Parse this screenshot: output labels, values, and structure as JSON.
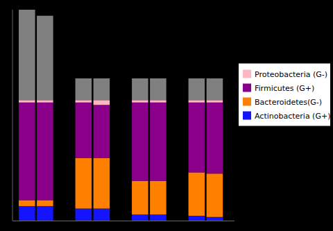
{
  "chart_data": {
    "type": "bar",
    "stacked": true,
    "legend": "right",
    "tick_labels": false,
    "categories": [
      null,
      null,
      null,
      null,
      null,
      null,
      null,
      null
    ],
    "ylim": [
      0,
      175
    ],
    "series": [
      {
        "name": "Actinobacteria (G+)",
        "color": "#1414FF",
        "values": [
          12,
          12,
          10,
          10,
          5,
          5,
          4,
          3
        ]
      },
      {
        "name": "Bacteroidetes(G-)",
        "color": "#FF7F00",
        "values": [
          5,
          5,
          42,
          42,
          28,
          28,
          36,
          36
        ]
      },
      {
        "name": "Firmicutes (G+)",
        "color": "#8B008B",
        "values": [
          81,
          81,
          46,
          44,
          65,
          65,
          58,
          59
        ]
      },
      {
        "name": "Proteobacteria (G-)",
        "color": "#FFB6C1",
        "values": [
          2,
          2,
          2,
          4,
          2,
          2,
          2,
          2
        ]
      },
      {
        "color": "#808080",
        "values": [
          75,
          70,
          18,
          18,
          18,
          18,
          18,
          18
        ]
      }
    ]
  }
}
